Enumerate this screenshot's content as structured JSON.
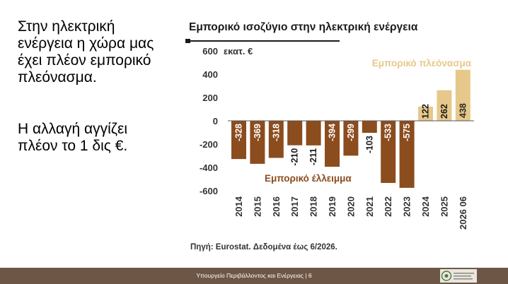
{
  "slide": {
    "paragraph1": "Στην ηλεκτρική ενέργεια η χώρα μας έχει πλέον εμπορικό πλεόνασμα.",
    "paragraph2": "Η αλλαγή αγγίζει πλέον το 1 δις €."
  },
  "source_note": "Πηγή: Eurostat. Δεδομένα έως 6/2026.",
  "footer": {
    "text": "Υπουργείο Περιβάλλοντος και Ενέργειας | 6"
  },
  "colors": {
    "deficit": "#8b4c1e",
    "surplus": "#e6c88a",
    "footer": "#6e5646"
  },
  "chart_data": {
    "type": "bar",
    "title": "Εμπορικό ισοζύγιο στην ηλεκτρική ενέργεια",
    "ylabel": "",
    "unit_label": "εκατ. €",
    "categories": [
      "2014",
      "2015",
      "2016",
      "2017",
      "2018",
      "2019",
      "2020",
      "2021",
      "2022",
      "2023",
      "2024",
      "2025",
      "2026 06"
    ],
    "values": [
      -328,
      -369,
      -318,
      -210,
      -211,
      -394,
      -299,
      -103,
      -533,
      -575,
      122,
      262,
      438
    ],
    "ylim": [
      -600,
      600
    ],
    "yticks": [
      600,
      400,
      200,
      0,
      -200,
      -400,
      -600
    ],
    "grid": false,
    "annotations": {
      "surplus": "Εμπορικό πλεόνασμα",
      "deficit": "Εμπορικό έλλειμμα"
    }
  }
}
